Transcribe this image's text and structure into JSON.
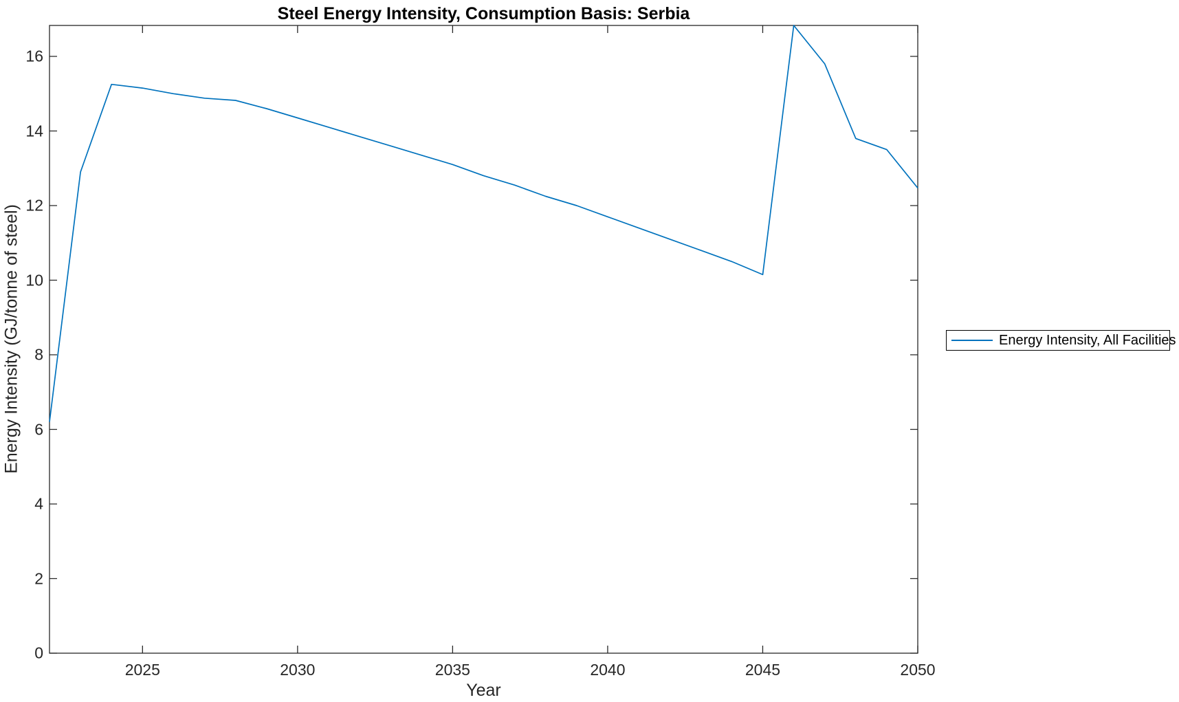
{
  "figure": {
    "title": "Steel Energy Intensity, Consumption Basis: Serbia",
    "xlabel": "Year",
    "ylabel": "Energy Intensity (GJ/tonne of steel)",
    "background": "#ffffff",
    "axis_color": "#262626",
    "legend": {
      "label": "Energy Intensity, All Facilities",
      "line_color": "#0072BD",
      "border_color": "#000000",
      "position": "outside-right"
    }
  },
  "chart_data": {
    "type": "line",
    "title": "Steel Energy Intensity, Consumption Basis: Serbia",
    "xlabel": "Year",
    "ylabel": "Energy Intensity (GJ/tonne of steel)",
    "xlim": [
      2022,
      2050
    ],
    "ylim": [
      0,
      16.83
    ],
    "xticks": [
      2025,
      2030,
      2035,
      2040,
      2045,
      2050
    ],
    "yticks": [
      0,
      2,
      4,
      6,
      8,
      10,
      12,
      14,
      16
    ],
    "grid": false,
    "legend_position": "outside-right",
    "series": [
      {
        "name": "Energy Intensity, All Facilities",
        "color": "#0072BD",
        "x": [
          2022,
          2023,
          2024,
          2025,
          2026,
          2027,
          2028,
          2029,
          2030,
          2031,
          2032,
          2033,
          2034,
          2035,
          2036,
          2037,
          2038,
          2039,
          2040,
          2041,
          2042,
          2043,
          2044,
          2045,
          2046,
          2047,
          2048,
          2049,
          2050
        ],
        "values": [
          6.2,
          12.9,
          15.25,
          15.15,
          15.0,
          14.88,
          14.82,
          14.6,
          14.35,
          14.1,
          13.85,
          13.6,
          13.35,
          13.1,
          12.8,
          12.55,
          12.25,
          12.0,
          11.7,
          11.4,
          11.1,
          10.8,
          10.5,
          10.15,
          16.83,
          15.8,
          13.8,
          13.5,
          12.47
        ]
      }
    ]
  }
}
